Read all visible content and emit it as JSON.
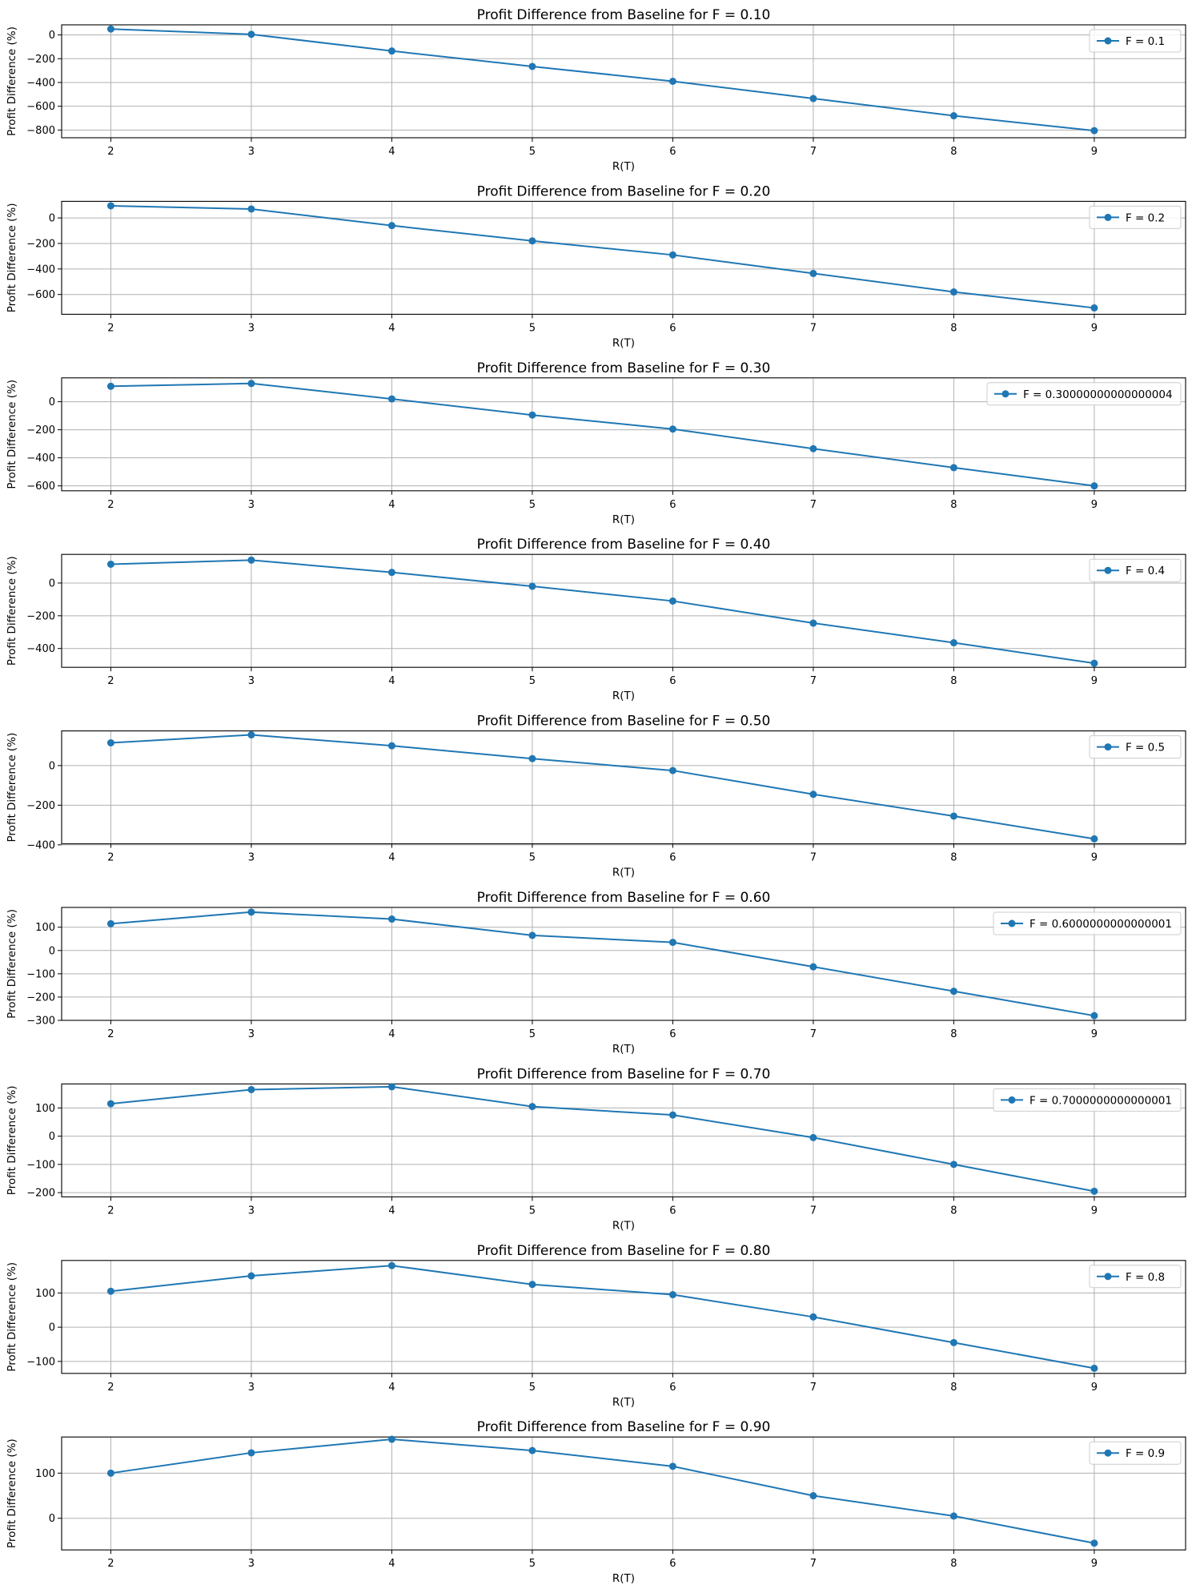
{
  "chart_data": [
    {
      "type": "line",
      "title": "Profit Difference from Baseline for F = 0.10",
      "xlabel": "R(T)",
      "ylabel": "Profit Difference (%)",
      "x": [
        2,
        3,
        4,
        5,
        6,
        7,
        8,
        9
      ],
      "xticks": [
        2,
        3,
        4,
        5,
        6,
        7,
        8,
        9
      ],
      "yticks": [
        -800,
        -600,
        -400,
        -200,
        0
      ],
      "ylim": [
        -865,
        85
      ],
      "grid": true,
      "legend_position": "upper right",
      "series": [
        {
          "name": "F = 0.1",
          "values": [
            50,
            5,
            -135,
            -265,
            -390,
            -535,
            -680,
            -805
          ]
        }
      ],
      "colors": {
        "line": "#1f77b4"
      }
    },
    {
      "type": "line",
      "title": "Profit Difference from Baseline for F = 0.20",
      "xlabel": "R(T)",
      "ylabel": "Profit Difference (%)",
      "x": [
        2,
        3,
        4,
        5,
        6,
        7,
        8,
        9
      ],
      "xticks": [
        2,
        3,
        4,
        5,
        6,
        7,
        8,
        9
      ],
      "yticks": [
        -600,
        -400,
        -200,
        0
      ],
      "ylim": [
        -755,
        130
      ],
      "grid": true,
      "legend_position": "upper right",
      "series": [
        {
          "name": "F = 0.2",
          "values": [
            95,
            70,
            -60,
            -180,
            -290,
            -435,
            -580,
            -705
          ]
        }
      ],
      "colors": {
        "line": "#1f77b4"
      }
    },
    {
      "type": "line",
      "title": "Profit Difference from Baseline for F = 0.30",
      "xlabel": "R(T)",
      "ylabel": "Profit Difference (%)",
      "x": [
        2,
        3,
        4,
        5,
        6,
        7,
        8,
        9
      ],
      "xticks": [
        2,
        3,
        4,
        5,
        6,
        7,
        8,
        9
      ],
      "yticks": [
        -600,
        -400,
        -200,
        0
      ],
      "ylim": [
        -635,
        170
      ],
      "grid": true,
      "legend_position": "upper right",
      "series": [
        {
          "name": "F = 0.30000000000000004",
          "values": [
            110,
            130,
            20,
            -95,
            -195,
            -335,
            -470,
            -600
          ]
        }
      ],
      "colors": {
        "line": "#1f77b4"
      }
    },
    {
      "type": "line",
      "title": "Profit Difference from Baseline for F = 0.40",
      "xlabel": "R(T)",
      "ylabel": "Profit Difference (%)",
      "x": [
        2,
        3,
        4,
        5,
        6,
        7,
        8,
        9
      ],
      "xticks": [
        2,
        3,
        4,
        5,
        6,
        7,
        8,
        9
      ],
      "yticks": [
        -400,
        -200,
        0
      ],
      "ylim": [
        -515,
        175
      ],
      "grid": true,
      "legend_position": "upper right",
      "series": [
        {
          "name": "F = 0.4",
          "values": [
            115,
            140,
            65,
            -20,
            -110,
            -245,
            -365,
            -490
          ]
        }
      ],
      "colors": {
        "line": "#1f77b4"
      }
    },
    {
      "type": "line",
      "title": "Profit Difference from Baseline for F = 0.50",
      "xlabel": "R(T)",
      "ylabel": "Profit Difference (%)",
      "x": [
        2,
        3,
        4,
        5,
        6,
        7,
        8,
        9
      ],
      "xticks": [
        2,
        3,
        4,
        5,
        6,
        7,
        8,
        9
      ],
      "yticks": [
        -400,
        -200,
        0
      ],
      "ylim": [
        -395,
        175
      ],
      "grid": true,
      "legend_position": "upper right",
      "series": [
        {
          "name": "F = 0.5",
          "values": [
            115,
            155,
            100,
            35,
            -25,
            -145,
            -255,
            -370
          ]
        }
      ],
      "colors": {
        "line": "#1f77b4"
      }
    },
    {
      "type": "line",
      "title": "Profit Difference from Baseline for F = 0.60",
      "xlabel": "R(T)",
      "ylabel": "Profit Difference (%)",
      "x": [
        2,
        3,
        4,
        5,
        6,
        7,
        8,
        9
      ],
      "xticks": [
        2,
        3,
        4,
        5,
        6,
        7,
        8,
        9
      ],
      "yticks": [
        -300,
        -200,
        -100,
        0,
        100
      ],
      "ylim": [
        -300,
        185
      ],
      "grid": true,
      "legend_position": "upper right",
      "series": [
        {
          "name": "F = 0.6000000000000001",
          "values": [
            115,
            165,
            135,
            65,
            35,
            -70,
            -175,
            -280
          ]
        }
      ],
      "colors": {
        "line": "#1f77b4"
      }
    },
    {
      "type": "line",
      "title": "Profit Difference from Baseline for F = 0.70",
      "xlabel": "R(T)",
      "ylabel": "Profit Difference (%)",
      "x": [
        2,
        3,
        4,
        5,
        6,
        7,
        8,
        9
      ],
      "xticks": [
        2,
        3,
        4,
        5,
        6,
        7,
        8,
        9
      ],
      "yticks": [
        -200,
        -100,
        0,
        100
      ],
      "ylim": [
        -215,
        185
      ],
      "grid": true,
      "legend_position": "upper right",
      "series": [
        {
          "name": "F = 0.7000000000000001",
          "values": [
            115,
            165,
            175,
            105,
            75,
            -5,
            -100,
            -195
          ]
        }
      ],
      "colors": {
        "line": "#1f77b4"
      }
    },
    {
      "type": "line",
      "title": "Profit Difference from Baseline for F = 0.80",
      "xlabel": "R(T)",
      "ylabel": "Profit Difference (%)",
      "x": [
        2,
        3,
        4,
        5,
        6,
        7,
        8,
        9
      ],
      "xticks": [
        2,
        3,
        4,
        5,
        6,
        7,
        8,
        9
      ],
      "yticks": [
        -100,
        0,
        100
      ],
      "ylim": [
        -135,
        195
      ],
      "grid": true,
      "legend_position": "upper right",
      "series": [
        {
          "name": "F = 0.8",
          "values": [
            105,
            150,
            180,
            125,
            95,
            30,
            -45,
            -120
          ]
        }
      ],
      "colors": {
        "line": "#1f77b4"
      }
    },
    {
      "type": "line",
      "title": "Profit Difference from Baseline for F = 0.90",
      "xlabel": "R(T)",
      "ylabel": "Profit Difference (%)",
      "x": [
        2,
        3,
        4,
        5,
        6,
        7,
        8,
        9
      ],
      "xticks": [
        2,
        3,
        4,
        5,
        6,
        7,
        8,
        9
      ],
      "yticks": [
        0,
        100
      ],
      "ylim": [
        -70,
        180
      ],
      "grid": true,
      "legend_position": "upper right",
      "series": [
        {
          "name": "F = 0.9",
          "values": [
            100,
            145,
            175,
            150,
            115,
            50,
            5,
            -55
          ]
        }
      ],
      "colors": {
        "line": "#1f77b4"
      }
    }
  ]
}
